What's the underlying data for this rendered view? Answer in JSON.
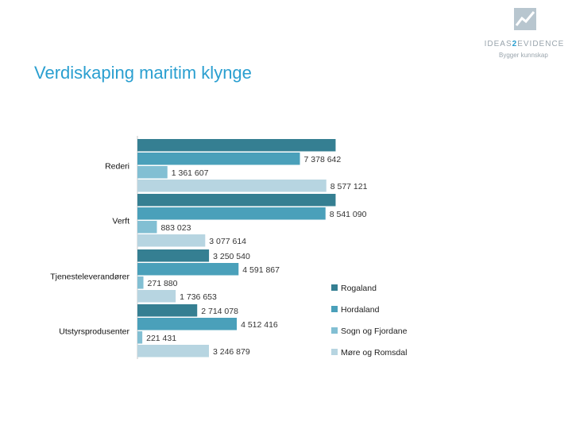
{
  "page": {
    "title": "Verdiskaping maritim klynge"
  },
  "logo": {
    "name_pre": "IDEAS",
    "name_mid": "2",
    "name_post": "EVIDENCE",
    "tagline": "Bygger kunnskap"
  },
  "chart_data": {
    "type": "bar",
    "orientation": "horizontal",
    "title": "",
    "xlabel": "",
    "ylabel": "",
    "xlim": [
      0,
      9200000
    ],
    "grid": false,
    "legend_position": "right",
    "categories": [
      "Rederi",
      "Verft",
      "Tjenesteleverandører",
      "Utstyrsprodusenter"
    ],
    "category_labels": [
      "Rederi",
      "Verft",
      "Tjenesteleverandører",
      "Utstyrsprodusenter"
    ],
    "series": [
      {
        "name": "Rogaland",
        "color": "#357f92",
        "values": [
          9000000,
          9000000,
          3250540,
          2714078
        ],
        "labels": [
          "",
          "",
          "3 250 540",
          "2 714 078"
        ]
      },
      {
        "name": "Hordaland",
        "color": "#4aa0ba",
        "values": [
          7378642,
          8541090,
          4591867,
          4512416
        ],
        "labels": [
          "7 378 642",
          "8 541 090",
          "4 591 867",
          "4 512 416"
        ]
      },
      {
        "name": "Sogn og Fjordane",
        "color": "#82bfd3",
        "values": [
          1361607,
          883023,
          271880,
          221431
        ],
        "labels": [
          "1 361 607",
          "883 023",
          "271 880",
          "221 431"
        ]
      },
      {
        "name": "Møre og Romsdal",
        "color": "#b7d5e1",
        "values": [
          8577121,
          3077614,
          1736653,
          3246879
        ],
        "labels": [
          "8 577 121",
          "3 077 614",
          "1 736 653",
          "3 246 879"
        ]
      }
    ]
  }
}
